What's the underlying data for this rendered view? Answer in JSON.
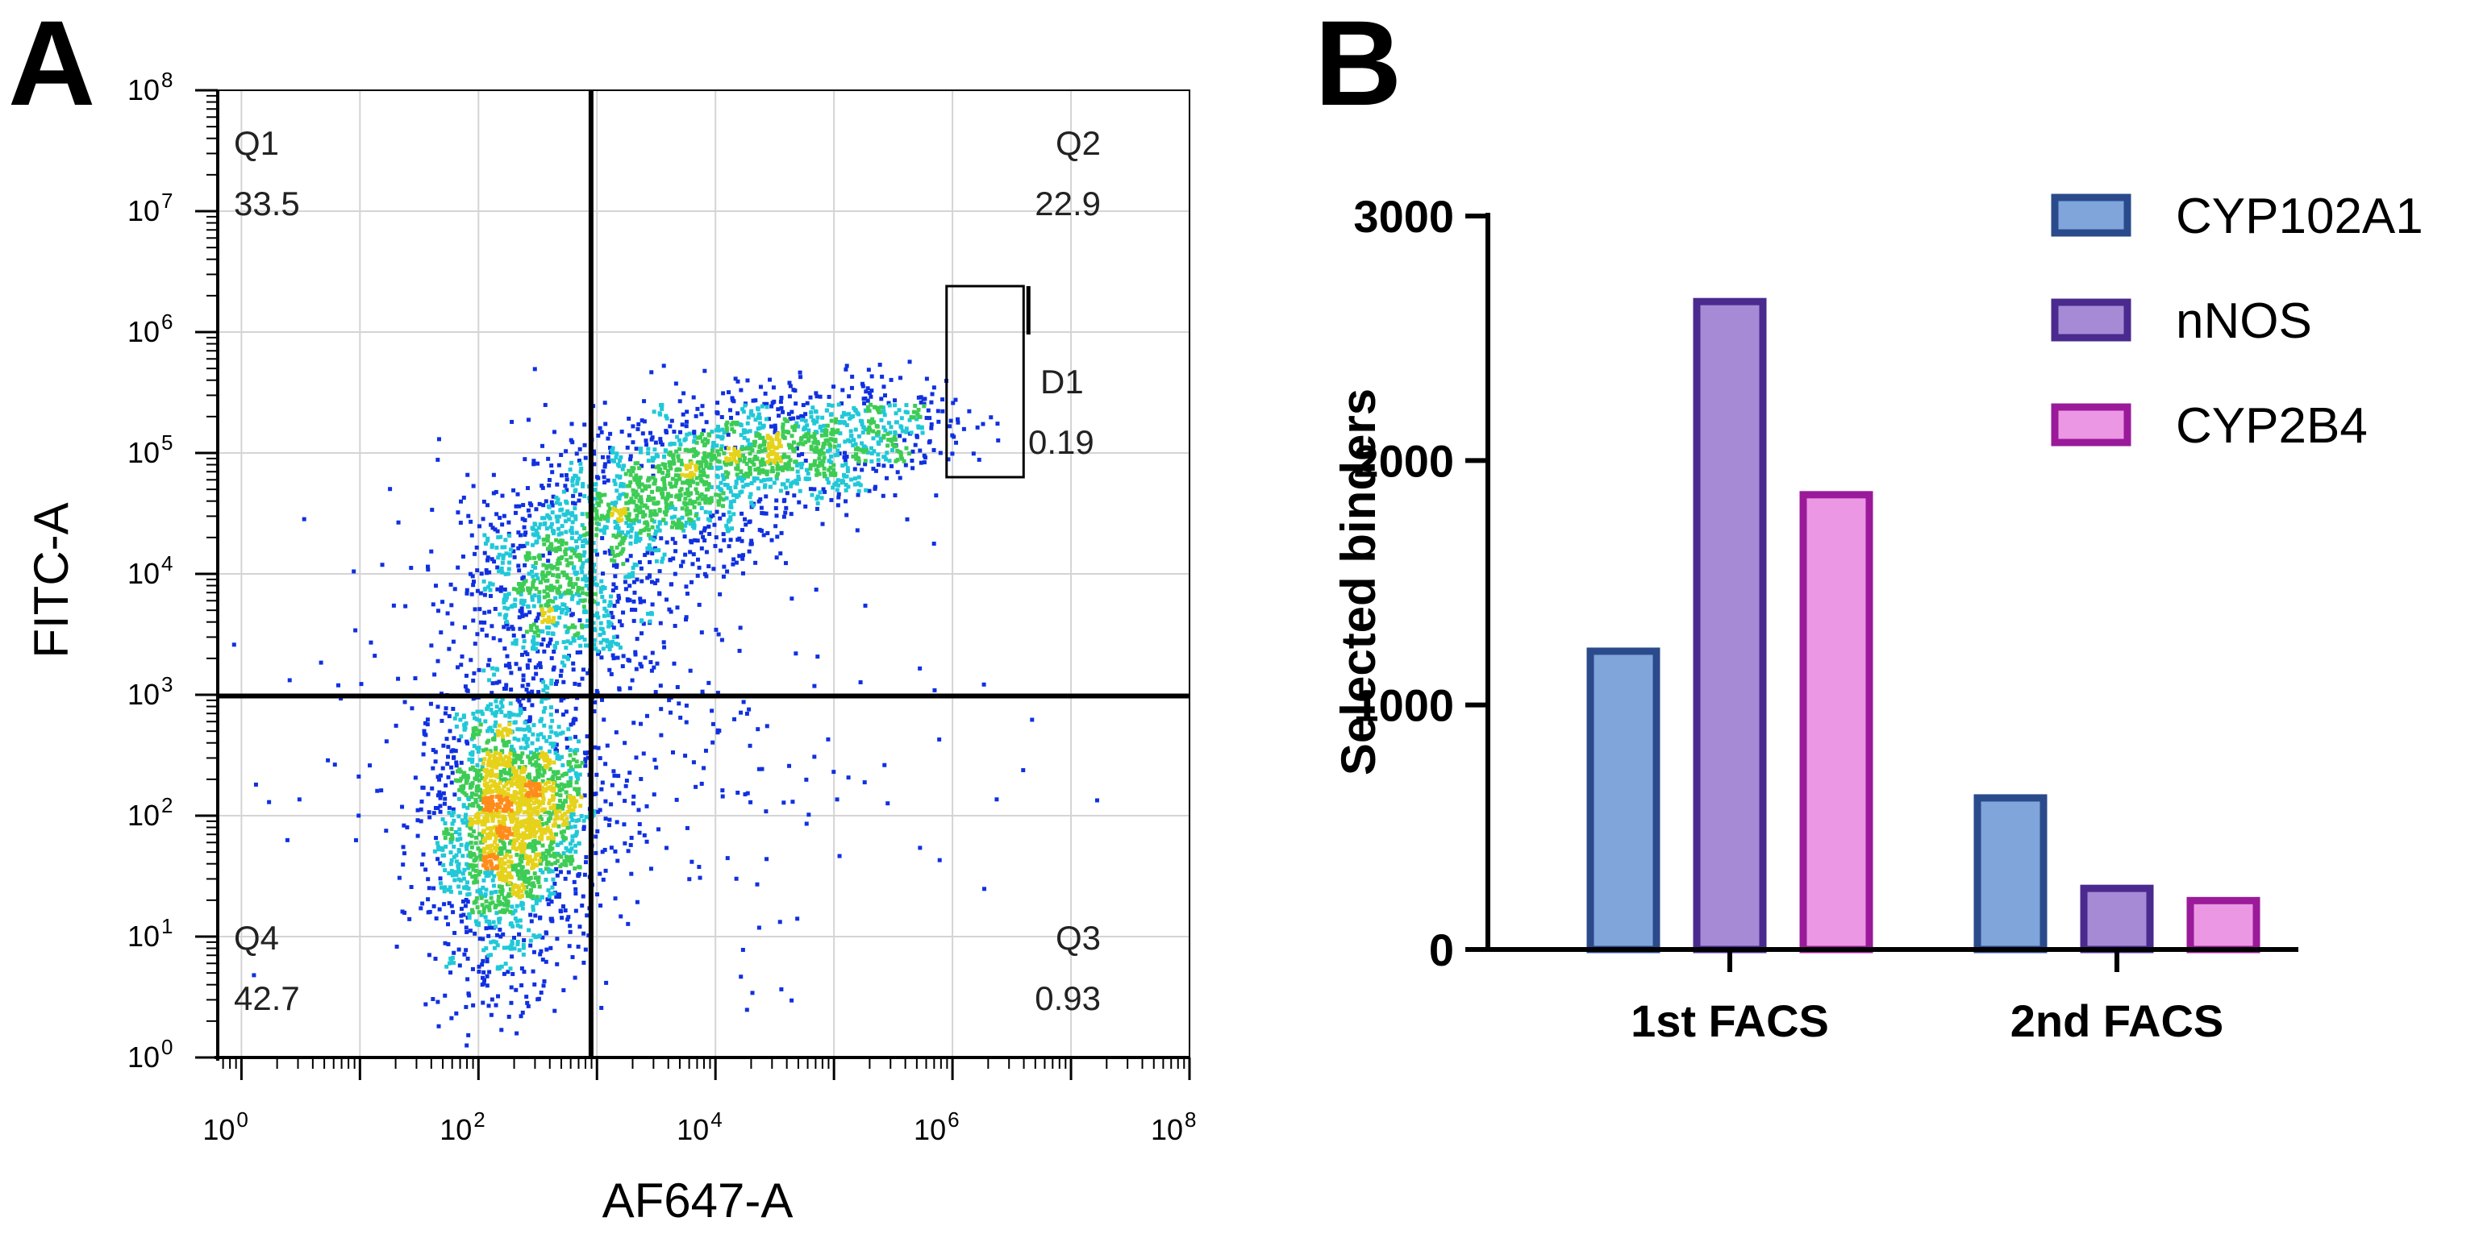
{
  "chart_data": [
    {
      "panel": "A",
      "type": "scatter",
      "title": "",
      "xlabel": "AF647-A",
      "ylabel": "FITC-A",
      "scale": "log10",
      "xlim_exp": [
        -0.2,
        8
      ],
      "ylim_exp": [
        0,
        8
      ],
      "x_ticks": [
        {
          "base": "10",
          "exp": "0",
          "value": 0
        },
        {
          "base": "10",
          "exp": "2",
          "value": 2
        },
        {
          "base": "10",
          "exp": "4",
          "value": 4
        },
        {
          "base": "10",
          "exp": "6",
          "value": 6
        },
        {
          "base": "10",
          "exp": "8",
          "value": 8
        }
      ],
      "y_ticks": [
        {
          "base": "10",
          "exp": "0",
          "value": 0
        },
        {
          "base": "10",
          "exp": "1",
          "value": 1
        },
        {
          "base": "10",
          "exp": "2",
          "value": 2
        },
        {
          "base": "10",
          "exp": "3",
          "value": 3
        },
        {
          "base": "10",
          "exp": "4",
          "value": 4
        },
        {
          "base": "10",
          "exp": "5",
          "value": 5
        },
        {
          "base": "10",
          "exp": "6",
          "value": 6
        },
        {
          "base": "10",
          "exp": "7",
          "value": 7
        },
        {
          "base": "10",
          "exp": "8",
          "value": 8
        }
      ],
      "quadrant_divider": {
        "x_exp": 2.95,
        "y_exp": 2.99
      },
      "quadrants": [
        {
          "name": "Q1",
          "value": "33.5",
          "corner": "top-left"
        },
        {
          "name": "Q2",
          "value": "22.9",
          "corner": "top-right"
        },
        {
          "name": "Q3",
          "value": "0.93",
          "corner": "bottom-right"
        },
        {
          "name": "Q4",
          "value": "42.7",
          "corner": "bottom-left"
        }
      ],
      "gate": {
        "name": "D1",
        "value": "0.19",
        "x_exp": [
          5.95,
          6.6
        ],
        "y_exp": [
          4.8,
          6.38
        ]
      },
      "population_clusters": [
        {
          "x_exp": 2.3,
          "y_exp": 2.1,
          "sx": 0.35,
          "sy": 0.45,
          "n": 1500
        },
        {
          "x_exp": 2.2,
          "y_exp": 1.4,
          "sx": 0.3,
          "sy": 0.5,
          "n": 500
        },
        {
          "x_exp": 2.7,
          "y_exp": 3.9,
          "sx": 0.45,
          "sy": 0.45,
          "n": 900
        },
        {
          "x_exp": 3.5,
          "y_exp": 4.6,
          "sx": 0.45,
          "sy": 0.3,
          "n": 700
        },
        {
          "x_exp": 4.5,
          "y_exp": 5.0,
          "sx": 0.55,
          "sy": 0.25,
          "n": 800
        },
        {
          "x_exp": 5.4,
          "y_exp": 5.25,
          "sx": 0.35,
          "sy": 0.2,
          "n": 200
        },
        {
          "x_exp": 4.0,
          "y_exp": 2.5,
          "sx": 1.1,
          "sy": 0.7,
          "n": 150
        },
        {
          "x_exp": 2.0,
          "y_exp": 3.0,
          "sx": 1.1,
          "sy": 1.4,
          "n": 140
        }
      ],
      "colors": {
        "sparse": "#1030e0",
        "mid": "#3dcc55",
        "dense": "#e02010"
      }
    },
    {
      "panel": "B",
      "type": "bar",
      "title": "",
      "xlabel": "",
      "ylabel": "Selected binders",
      "ylim": [
        0,
        3000
      ],
      "yticks": [
        0,
        1000,
        2000,
        3000
      ],
      "categories": [
        "1st FACS",
        "2nd FACS"
      ],
      "series": [
        {
          "name": "CYP102A1",
          "values": [
            1220,
            620
          ],
          "fill": "#7fa5db",
          "stroke": "#2a4a8c"
        },
        {
          "name": "nNOS",
          "values": [
            2650,
            250
          ],
          "fill": "#a68ad6",
          "stroke": "#4a2a8e"
        },
        {
          "name": "CYP2B4",
          "values": [
            1860,
            200
          ],
          "fill": "#ec97e4",
          "stroke": "#9a1a9a"
        }
      ],
      "legend": "top-right"
    }
  ],
  "panel_labels": {
    "a": "A",
    "b": "B"
  }
}
